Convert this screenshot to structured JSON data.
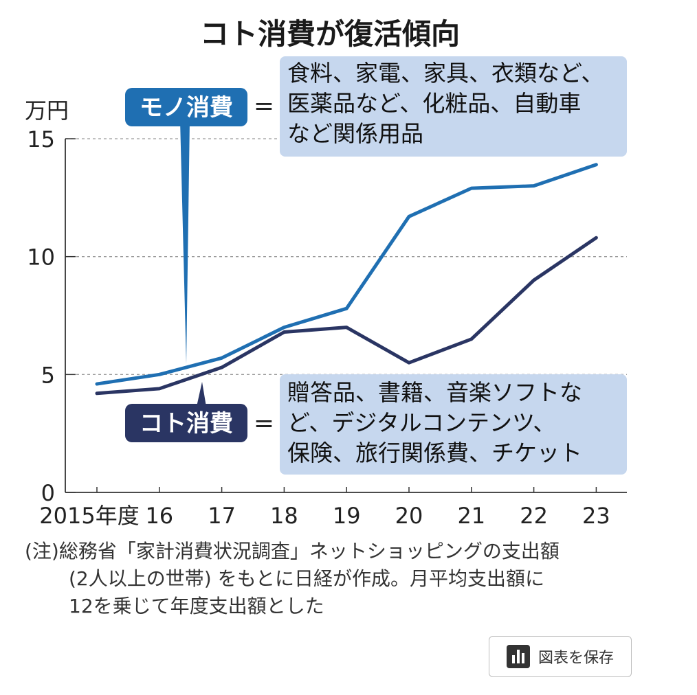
{
  "chart_data": {
    "type": "line",
    "title": "コト消費が復活傾向",
    "unit_label": "万円",
    "ylim": [
      0,
      15
    ],
    "y_ticks": [
      "0",
      "5",
      "10",
      "15"
    ],
    "x_labels": [
      "2015年度",
      "16",
      "17",
      "18",
      "19",
      "20",
      "21",
      "22",
      "23"
    ],
    "grid": "dashed horizontal at 5, 10, 15",
    "series": [
      {
        "name": "モノ消費",
        "color": "#1f6fb2",
        "values": [
          4.6,
          5.0,
          5.7,
          7.0,
          7.8,
          11.7,
          12.9,
          13.0,
          13.9
        ]
      },
      {
        "name": "コト消費",
        "color": "#2a3563",
        "values": [
          4.2,
          4.4,
          5.3,
          6.8,
          7.0,
          5.5,
          6.5,
          9.0,
          10.8
        ]
      }
    ],
    "annotations": {
      "mono": {
        "label": "モノ消費",
        "equals": "=",
        "lines": [
          "食料、家電、家具、衣類など、",
          "医薬品など、化粧品、自動車",
          "など関係用品"
        ]
      },
      "koto": {
        "label": "コト消費",
        "equals": "=",
        "lines": [
          "贈答品、書籍、音楽ソフトな",
          "ど、デジタルコンテンツ、",
          "保険、旅行関係費、チケット"
        ]
      }
    },
    "note": [
      "(注)総務省「家計消費状況調査」ネットショッピングの支出額",
      "(2人以上の世帯) をもとに日経が作成。月平均支出額に",
      "12を乗じて年度支出額とした"
    ]
  },
  "ui": {
    "save_label": "図表を保存",
    "save_icon": "bar-chart-icon"
  }
}
